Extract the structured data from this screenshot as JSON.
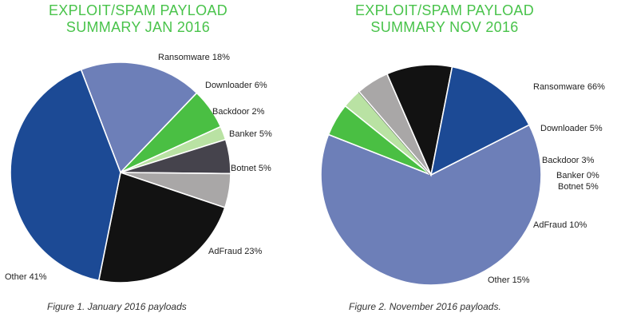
{
  "chart_data": [
    {
      "type": "pie",
      "title": "EXPLOIT/SPAM PAYLOAD",
      "subtitle": "SUMMARY JAN 2016",
      "caption": "Figure 1. January 2016 payloads",
      "slices": [
        {
          "name": "Ransomware",
          "value": 18,
          "label": "Ransomware 18%",
          "color": "#6d7fb8"
        },
        {
          "name": "Downloader",
          "value": 6,
          "label": "Downloader 6%",
          "color": "#4abf43"
        },
        {
          "name": "Backdoor",
          "value": 2,
          "label": "Backdoor 2%",
          "color": "#b9e2a3"
        },
        {
          "name": "Banker",
          "value": 5,
          "label": "Banker 5%",
          "color": "#45434c"
        },
        {
          "name": "Botnet",
          "value": 5,
          "label": "Botnet 5%",
          "color": "#a9a7a7"
        },
        {
          "name": "AdFraud",
          "value": 23,
          "label": "AdFraud 23%",
          "color": "#121212"
        },
        {
          "name": "Other",
          "value": 41,
          "label": "Other 41%",
          "color": "#1c4a95"
        }
      ]
    },
    {
      "type": "pie",
      "title": "EXPLOIT/SPAM PAYLOAD",
      "subtitle": "SUMMARY NOV 2016",
      "caption": "Figure 2. November 2016 payloads.",
      "slices": [
        {
          "name": "Ransomware",
          "value": 66,
          "label": "Ransomware 66%",
          "color": "#6d7fb8"
        },
        {
          "name": "Downloader",
          "value": 5,
          "label": "Downloader 5%",
          "color": "#4abf43"
        },
        {
          "name": "Backdoor",
          "value": 3,
          "label": "Backdoor 3%",
          "color": "#b9e2a3"
        },
        {
          "name": "Banker",
          "value": 0,
          "label": "Banker 0%",
          "color": "#45434c"
        },
        {
          "name": "Botnet",
          "value": 5,
          "label": "Botnet 5%",
          "color": "#a9a7a7"
        },
        {
          "name": "AdFraud",
          "value": 10,
          "label": "AdFraud 10%",
          "color": "#121212"
        },
        {
          "name": "Other",
          "value": 15,
          "label": "Other 15%",
          "color": "#1c4a95"
        }
      ]
    }
  ]
}
